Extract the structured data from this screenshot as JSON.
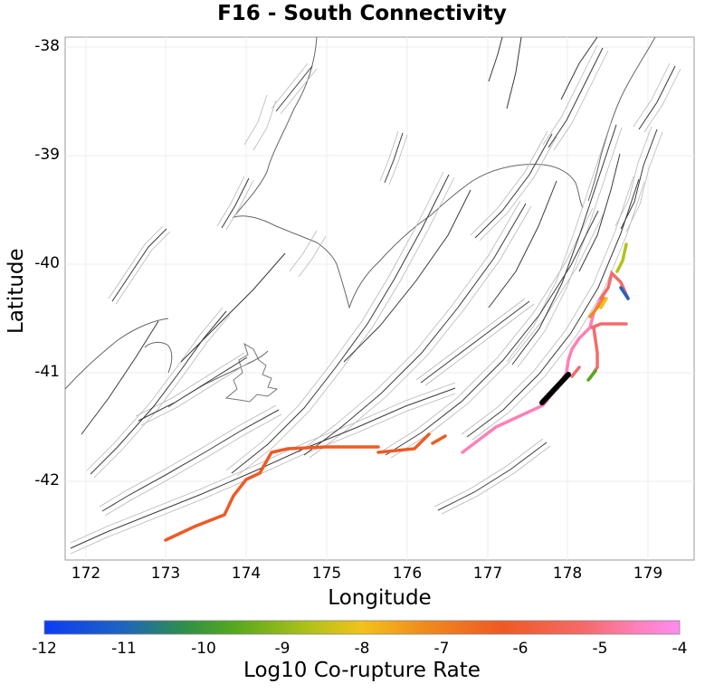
{
  "title": "F16 - South Connectivity",
  "map": {
    "xlabel": "Longitude",
    "ylabel": "Latitude",
    "x_ticks": [
      "172",
      "173",
      "174",
      "175",
      "176",
      "177",
      "178",
      "179"
    ],
    "y_ticks": [
      "-38",
      "-39",
      "-40",
      "-41",
      "-42"
    ],
    "lon_range": [
      171.75,
      179.4
    ],
    "lat_range": [
      -42.72,
      -37.9
    ]
  },
  "colorbar": {
    "label": "Log10 Co-rupture Rate",
    "ticks": [
      "-12",
      "-11",
      "-10",
      "-9",
      "-8",
      "-7",
      "-6",
      "-5",
      "-4"
    ],
    "range": [
      -12,
      -4
    ],
    "colors": [
      "#0b3cf5",
      "#1e63c2",
      "#2f8f4a",
      "#56a81e",
      "#b2c21a",
      "#f2c21a",
      "#f08a1e",
      "#ee5a24",
      "#f56a6a",
      "#ff7fb8",
      "#ff8cf0"
    ]
  },
  "legend_colors": {
    "target_fault": "#000000",
    "basemap_fault": "#333333",
    "fault_surface": "#b0b0b0",
    "coastline": "#555555",
    "grid": "#e6e6e6"
  }
}
